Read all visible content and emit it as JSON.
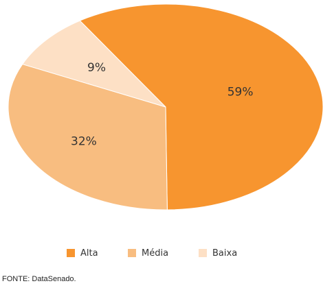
{
  "chart_data": {
    "type": "pie",
    "categories": [
      "Alta",
      "Média",
      "Baixa"
    ],
    "values": [
      59,
      32,
      9
    ],
    "value_labels": [
      "59%",
      "32%",
      "9%"
    ],
    "colors": [
      "#f7952f",
      "#f8bd80",
      "#fde0c5"
    ],
    "legend_position": "bottom",
    "title": "",
    "xlabel": "",
    "ylabel": ""
  },
  "legend": {
    "items": [
      {
        "label": "Alta",
        "color": "#f7952f"
      },
      {
        "label": "Média",
        "color": "#f8bd80"
      },
      {
        "label": "Baixa",
        "color": "#fde0c5"
      }
    ]
  },
  "source": "FONTE: DataSenado."
}
